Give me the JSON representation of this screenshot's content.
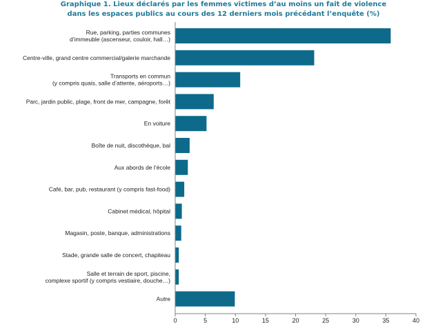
{
  "chart_data": {
    "type": "bar",
    "orientation": "horizontal",
    "title_lines": [
      "Graphique 1. Lieux déclarés par les femmes victimes d’au moins un fait de violence",
      "dans les espaces publics au cours des 12 derniers mois précédant l’enquête (%)"
    ],
    "categories": [
      [
        "Rue, parking, parties communes",
        "d’immeuble (ascenseur, couloir, hall…)"
      ],
      [
        "Centre-ville, grand centre commercial/galerie marchande"
      ],
      [
        "Transports en commun",
        "(y compris quais, salle d’attente, aéroports…)"
      ],
      [
        "Parc, jardin public, plage, front de mer, campagne, forêt"
      ],
      [
        "En voiture"
      ],
      [
        "Boîte de nuit, discothèque, bal"
      ],
      [
        "Aux abords de l’école"
      ],
      [
        "Café, bar, pub, restaurant (y compris fast-food)"
      ],
      [
        "Cabinet médical, hôpital"
      ],
      [
        "Magasin, poste, banque, administrations"
      ],
      [
        "Stade, grande salle de concert, chapiteau"
      ],
      [
        "Salle et terrain de sport, piscine,",
        "complexe sportif (y compris vestiaire, douche…)"
      ],
      [
        "Autre"
      ]
    ],
    "values": [
      35.8,
      23.1,
      10.8,
      6.4,
      5.2,
      2.4,
      2.1,
      1.5,
      1.1,
      1.0,
      0.6,
      0.6,
      9.9
    ],
    "xlim": [
      0,
      40
    ],
    "xticks": [
      0,
      5,
      10,
      15,
      20,
      25,
      30,
      35,
      40
    ],
    "bar_color": "#0e6a8a",
    "title_color": "#1f7a99",
    "axis_color": "#808080",
    "xlabel": "",
    "ylabel": "",
    "grid": false
  }
}
